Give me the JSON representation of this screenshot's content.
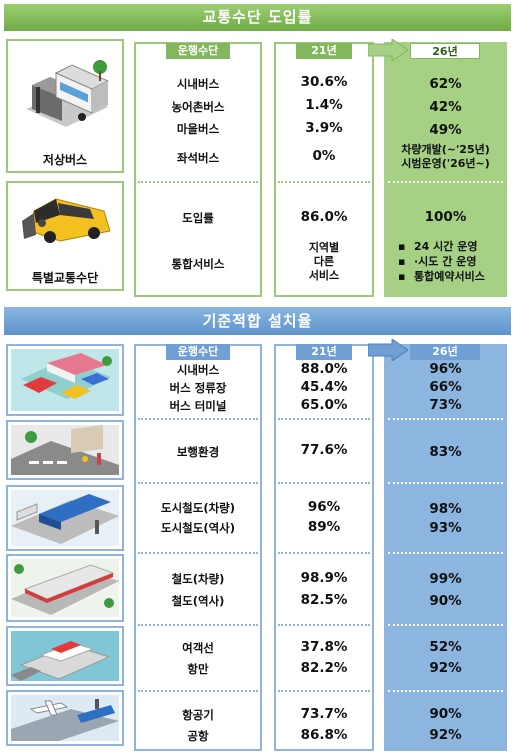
{
  "section1": {
    "title": "교통수단 도입률",
    "headers": {
      "mode": "운행수단",
      "y21": "21년",
      "y26": "26년"
    },
    "low_floor_bus": {
      "caption": "저상버스",
      "rows": [
        {
          "name": "시내버스",
          "y21": "30.6%",
          "y26": "62%"
        },
        {
          "name": "농어촌버스",
          "y21": "1.4%",
          "y26": "42%"
        },
        {
          "name": "마을버스",
          "y21": "3.9%",
          "y26": "49%"
        },
        {
          "name": "좌석버스",
          "y21": "0%",
          "y26_line1": "차량개발(~'25년)",
          "y26_line2": "시범운영('26년~)"
        }
      ]
    },
    "special_transport": {
      "caption": "특별교통수단",
      "rows": [
        {
          "name": "도입률",
          "y21": "86.0%",
          "y26": "100%"
        }
      ],
      "integrated": {
        "name": "통합서비스",
        "y21_lines": [
          "지역별",
          "다른",
          "서비스"
        ],
        "y26_bullets": [
          "24 시간 운영",
          "·시도 간 운영",
          "통합예약서비스"
        ],
        "bullet_mark": "▪"
      }
    }
  },
  "section2": {
    "title": "기준적합 설치율",
    "headers": {
      "mode": "운행수단",
      "y21": "21년",
      "y26": "26년"
    },
    "groups": [
      {
        "rows": [
          {
            "name": "시내버스",
            "y21": "88.0%",
            "y26": "96%"
          },
          {
            "name": "버스 정류장",
            "y21": "45.4%",
            "y26": "66%"
          },
          {
            "name": "버스 터미널",
            "y21": "65.0%",
            "y26": "73%"
          }
        ]
      },
      {
        "rows": [
          {
            "name": "보행환경",
            "y21": "77.6%",
            "y26": "83%"
          }
        ]
      },
      {
        "rows": [
          {
            "name": "도시철도(차량)",
            "y21": "96%",
            "y26": "98%"
          },
          {
            "name": "도시철도(역사)",
            "y21": "89%",
            "y26": "93%"
          }
        ]
      },
      {
        "rows": [
          {
            "name": "철도(차량)",
            "y21": "98.9%",
            "y26": "99%"
          },
          {
            "name": "철도(역사)",
            "y21": "82.5%",
            "y26": "90%"
          }
        ]
      },
      {
        "rows": [
          {
            "name": "여객선",
            "y21": "37.8%",
            "y26": "52%"
          },
          {
            "name": "항만",
            "y21": "82.2%",
            "y26": "92%"
          }
        ]
      },
      {
        "rows": [
          {
            "name": "항공기",
            "y21": "73.7%",
            "y26": "90%"
          },
          {
            "name": "공항",
            "y21": "86.8%",
            "y26": "92%"
          }
        ]
      }
    ]
  },
  "colors": {
    "green_band": "#7ab551",
    "green_fill": "#a6d184",
    "blue_band": "#6f9fd3",
    "blue_fill": "#8cb5e0"
  },
  "icons": [
    "bus-stop-illustration",
    "wheelchair-taxi-illustration",
    "bus-terminal-illustration",
    "sidewalk-illustration",
    "subway-station-illustration",
    "train-illustration",
    "ferry-port-illustration",
    "airport-illustration"
  ]
}
